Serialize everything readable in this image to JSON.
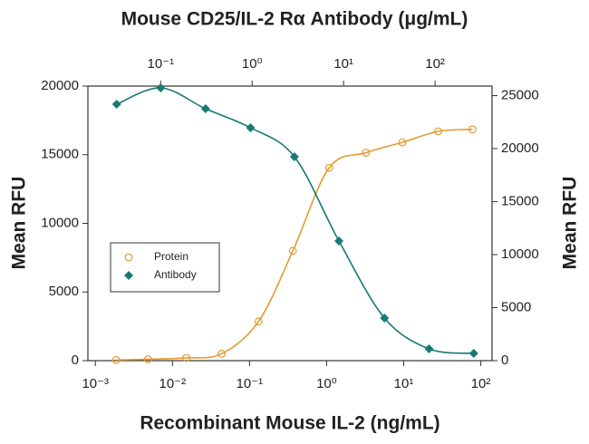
{
  "chart_data": {
    "type": "scatter",
    "x2label": "Mouse CD25/IL-2 Rα Antibody (μg/mL)",
    "xlabel": "Recombinant Mouse IL-2 (ng/mL)",
    "ylabel": "Mean RFU",
    "y2label": "Mean RFU",
    "xlog": true,
    "x2log": true,
    "xlim": [
      0.0008,
      140
    ],
    "xticks": [
      {
        "value": 0.001,
        "label": "10⁻³"
      },
      {
        "value": 0.01,
        "label": "10⁻²"
      },
      {
        "value": 0.1,
        "label": "10⁻¹"
      },
      {
        "value": 1,
        "label": "10⁰"
      },
      {
        "value": 10,
        "label": "10¹"
      },
      {
        "value": 100,
        "label": "10²"
      }
    ],
    "x2lim": [
      0.016,
      420
    ],
    "x2ticks": [
      {
        "value": 0.1,
        "label": "10⁻¹"
      },
      {
        "value": 1,
        "label": "10⁰"
      },
      {
        "value": 10,
        "label": "10¹"
      },
      {
        "value": 100,
        "label": "10²"
      }
    ],
    "ylim": [
      0,
      20000
    ],
    "yticks": [
      0,
      5000,
      10000,
      15000,
      20000
    ],
    "y2lim": [
      0,
      25900
    ],
    "y2ticks": [
      0,
      5000,
      10000,
      15000,
      20000,
      25000
    ],
    "legend": "center left",
    "series": [
      {
        "name": "Protein",
        "color": "#e39b2d",
        "marker": "circle",
        "fit": true,
        "x": [
          0.00186,
          0.0048,
          0.0151,
          0.0434,
          0.131,
          0.365,
          1.08,
          3.24,
          9.6,
          28,
          78
        ],
        "values": [
          50,
          100,
          200,
          500,
          2850,
          8000,
          14050,
          15150,
          15900,
          16700,
          16850
        ]
      },
      {
        "name": "Antibody",
        "color": "#177a73",
        "marker": "diamond",
        "fit": true,
        "axis": "y2",
        "xaxis": "x2",
        "x": [
          0.033,
          0.1,
          0.31,
          0.96,
          2.9,
          8.9,
          28,
          86,
          265
        ],
        "values": [
          24190,
          25730,
          23760,
          21970,
          19230,
          11280,
          4020,
          1110,
          680
        ]
      }
    ]
  }
}
